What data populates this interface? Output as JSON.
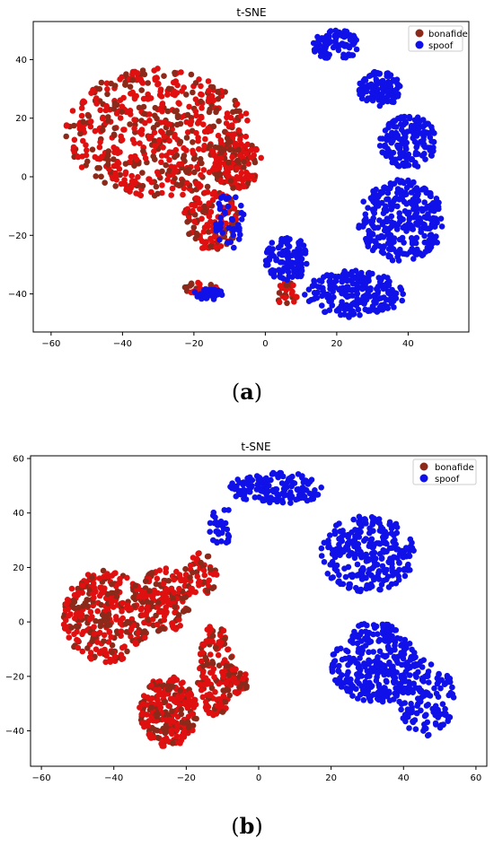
{
  "colors": {
    "bonafide": "#e01010",
    "bonafide_dot": "#8b2a1a",
    "spoof": "#1010e8",
    "axis": "#000000"
  },
  "chart_data": [
    {
      "type": "scatter",
      "title": "t-SNE",
      "caption": {
        "open": "(",
        "letter": "a",
        "close": ")"
      },
      "xlim": [
        -65,
        57
      ],
      "ylim": [
        -53,
        53
      ],
      "xticks": [
        -60,
        -40,
        -20,
        0,
        20,
        40
      ],
      "yticks": [
        -40,
        -20,
        0,
        20,
        40
      ],
      "legend_position": "top-right",
      "series": [
        {
          "name": "bonafide",
          "color": "#e01010",
          "clusters": [
            {
              "cx": -30,
              "cy": 15,
              "rx": 26,
              "ry": 22,
              "n": 600
            },
            {
              "cx": -8,
              "cy": 5,
              "rx": 7,
              "ry": 9,
              "n": 120
            },
            {
              "cx": -15,
              "cy": -15,
              "rx": 8,
              "ry": 10,
              "n": 140
            },
            {
              "cx": -18,
              "cy": -38,
              "rx": 5,
              "ry": 2,
              "n": 25
            },
            {
              "cx": 6,
              "cy": -40,
              "rx": 3,
              "ry": 4,
              "n": 25
            }
          ]
        },
        {
          "name": "spoof",
          "color": "#1010e8",
          "clusters": [
            {
              "cx": 20,
              "cy": 45,
              "rx": 7,
              "ry": 5,
              "n": 90
            },
            {
              "cx": 32,
              "cy": 30,
              "rx": 6,
              "ry": 6,
              "n": 110
            },
            {
              "cx": 40,
              "cy": 12,
              "rx": 8,
              "ry": 9,
              "n": 160
            },
            {
              "cx": 38,
              "cy": -15,
              "rx": 12,
              "ry": 14,
              "n": 320
            },
            {
              "cx": 25,
              "cy": -40,
              "rx": 14,
              "ry": 8,
              "n": 220
            },
            {
              "cx": 6,
              "cy": -28,
              "rx": 6,
              "ry": 8,
              "n": 110
            },
            {
              "cx": -16,
              "cy": -40,
              "rx": 4,
              "ry": 2,
              "n": 35
            },
            {
              "cx": -10,
              "cy": -15,
              "rx": 4,
              "ry": 10,
              "n": 40
            }
          ]
        }
      ]
    },
    {
      "type": "scatter",
      "title": "t-SNE",
      "caption": {
        "open": "(",
        "letter": "b",
        "close": ")"
      },
      "xlim": [
        -63,
        63
      ],
      "ylim": [
        -53,
        61
      ],
      "xticks": [
        -60,
        -40,
        -20,
        0,
        20,
        40,
        60
      ],
      "yticks": [
        -40,
        -20,
        0,
        20,
        40,
        60
      ],
      "legend_position": "top-right",
      "series": [
        {
          "name": "bonafide",
          "color": "#e01010",
          "clusters": [
            {
              "cx": -42,
              "cy": 2,
              "rx": 12,
              "ry": 17,
              "n": 330
            },
            {
              "cx": -26,
              "cy": 8,
              "rx": 7,
              "ry": 12,
              "n": 160
            },
            {
              "cx": -25,
              "cy": -33,
              "rx": 8,
              "ry": 13,
              "n": 260
            },
            {
              "cx": -12,
              "cy": -18,
              "rx": 5,
              "ry": 17,
              "n": 150
            },
            {
              "cx": -16,
              "cy": 18,
              "rx": 5,
              "ry": 8,
              "n": 60
            },
            {
              "cx": -6,
              "cy": -22,
              "rx": 3,
              "ry": 5,
              "n": 35
            }
          ]
        },
        {
          "name": "spoof",
          "color": "#1010e8",
          "clusters": [
            {
              "cx": 5,
              "cy": 49,
              "rx": 13,
              "ry": 6,
              "n": 150
            },
            {
              "cx": 30,
              "cy": 25,
              "rx": 13,
              "ry": 14,
              "n": 280
            },
            {
              "cx": 32,
              "cy": -15,
              "rx": 12,
              "ry": 15,
              "n": 300
            },
            {
              "cx": 46,
              "cy": -28,
              "rx": 8,
              "ry": 14,
              "n": 140
            },
            {
              "cx": -10,
              "cy": 35,
              "rx": 4,
              "ry": 7,
              "n": 30
            }
          ]
        }
      ]
    }
  ]
}
